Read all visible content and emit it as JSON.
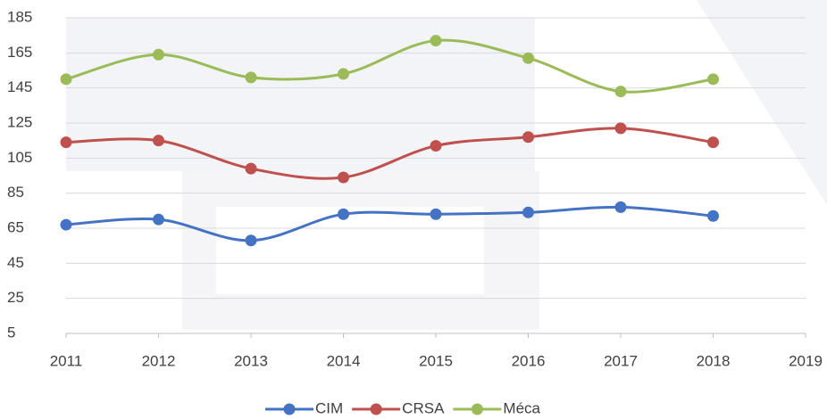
{
  "chart_data": {
    "type": "line",
    "x": [
      2011,
      2012,
      2013,
      2014,
      2015,
      2016,
      2017,
      2018
    ],
    "series": [
      {
        "name": "CIM",
        "color": "#4472c4",
        "values": [
          67,
          70,
          58,
          73,
          73,
          74,
          77,
          72
        ]
      },
      {
        "name": "CRSA",
        "color": "#c0504d",
        "values": [
          114,
          115,
          99,
          94,
          112,
          117,
          122,
          114
        ]
      },
      {
        "name": "Méca",
        "color": "#9bbb59",
        "values": [
          150,
          164,
          151,
          153,
          172,
          162,
          143,
          150
        ]
      }
    ],
    "xlim": [
      2011,
      2019
    ],
    "xticks": [
      2011,
      2012,
      2013,
      2014,
      2015,
      2016,
      2017,
      2018,
      2019
    ],
    "ylim": [
      5,
      185
    ],
    "yticks": [
      5,
      25,
      45,
      65,
      85,
      105,
      125,
      145,
      165,
      185
    ],
    "grid": true,
    "smooth": true,
    "legend": "bottom"
  }
}
